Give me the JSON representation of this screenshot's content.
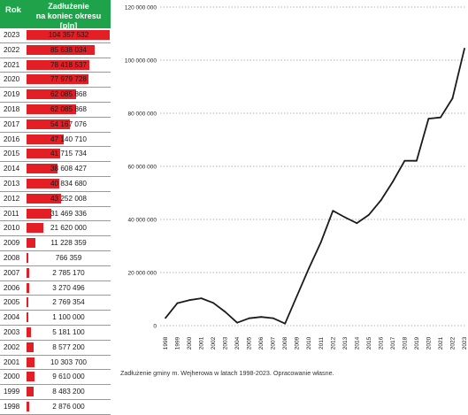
{
  "table": {
    "header_year": "Rok",
    "header_value_line1": "Zadłużenie",
    "header_value_line2": "na koniec okresu [pln]",
    "header_color": "#1fa34a",
    "bar_color": "#e31e24",
    "rows": [
      {
        "year": "2023",
        "label": "104 357 532",
        "value": 104357532
      },
      {
        "year": "2022",
        "label": "85 638 034",
        "value": 85638034
      },
      {
        "year": "2021",
        "label": "78 418 537",
        "value": 78418537
      },
      {
        "year": "2020",
        "label": "77 979 728",
        "value": 77979728
      },
      {
        "year": "2019",
        "label": "62 085 868",
        "value": 62085868
      },
      {
        "year": "2018",
        "label": "62 085 868",
        "value": 62085868
      },
      {
        "year": "2017",
        "label": "54 167 076",
        "value": 54167076
      },
      {
        "year": "2016",
        "label": "47 140 710",
        "value": 47140710
      },
      {
        "year": "2015",
        "label": "41 715 734",
        "value": 41715734
      },
      {
        "year": "2014",
        "label": "38 608 427",
        "value": 38608427
      },
      {
        "year": "2013",
        "label": "40 834 680",
        "value": 40834680
      },
      {
        "year": "2012",
        "label": "43 252 008",
        "value": 43252008
      },
      {
        "year": "2011",
        "label": "31 469 336",
        "value": 31469336
      },
      {
        "year": "2010",
        "label": "21 620 000",
        "value": 21620000
      },
      {
        "year": "2009",
        "label": "11 228 359",
        "value": 11228359
      },
      {
        "year": "2008",
        "label": "766 359",
        "value": 766359
      },
      {
        "year": "2007",
        "label": "2 785 170",
        "value": 2785170
      },
      {
        "year": "2006",
        "label": "3 270 496",
        "value": 3270496
      },
      {
        "year": "2005",
        "label": "2 769 354",
        "value": 2769354
      },
      {
        "year": "2004",
        "label": "1 100 000",
        "value": 1100000
      },
      {
        "year": "2003",
        "label": "5 181 100",
        "value": 5181100
      },
      {
        "year": "2002",
        "label": "8 577 200",
        "value": 8577200
      },
      {
        "year": "2001",
        "label": "10 303 700",
        "value": 10303700
      },
      {
        "year": "2000",
        "label": "9 610 000",
        "value": 9610000
      },
      {
        "year": "1999",
        "label": "8 483 200",
        "value": 8483200
      },
      {
        "year": "1998",
        "label": "2 876 000",
        "value": 2876000
      }
    ]
  },
  "chart_data": {
    "type": "line",
    "x": [
      "1998",
      "1999",
      "2000",
      "2001",
      "2002",
      "2003",
      "2004",
      "2005",
      "2006",
      "2007",
      "2008",
      "2009",
      "2010",
      "2011",
      "2012",
      "2013",
      "2014",
      "2015",
      "2016",
      "2017",
      "2018",
      "2019",
      "2020",
      "2021",
      "2022",
      "2023"
    ],
    "series": [
      {
        "values": [
          2876000,
          8483200,
          9610000,
          10303700,
          8577200,
          5181100,
          1100000,
          2769354,
          3270496,
          2785170,
          766359,
          11228359,
          21620000,
          31469336,
          43252008,
          40834680,
          38608427,
          41715734,
          47140710,
          54167076,
          62085868,
          62085868,
          77979728,
          78418537,
          85638034,
          104357532
        ]
      }
    ],
    "y_ticks": [
      "0",
      "20 000 000",
      "40 000 000",
      "60 000 000",
      "80 000 000",
      "100 000 000",
      "120 000 000"
    ],
    "ylim": [
      0,
      120000000
    ],
    "grid": "horizontal dotted",
    "line_color": "#1a1a1a"
  },
  "caption": "Zadłużenie gminy m. Wejherowa w latach 1998-2023. Opracowanie własne."
}
